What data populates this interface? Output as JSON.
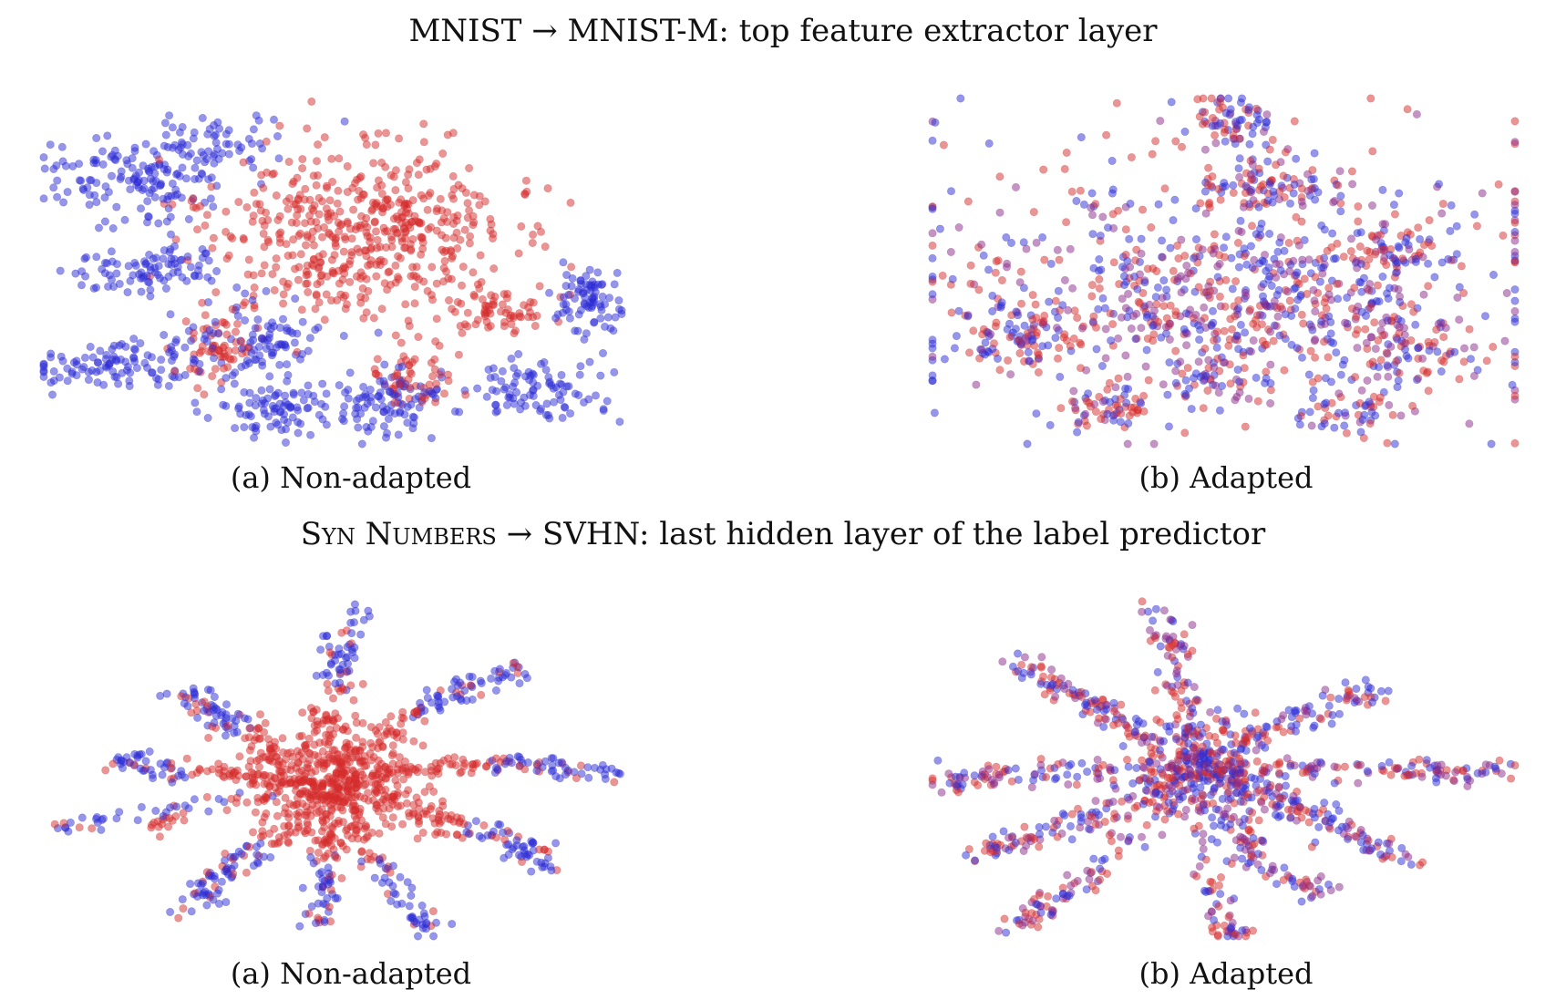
{
  "rows": [
    {
      "title_parts": [
        {
          "text": "MNIST → MNIST-M: top feature extractor layer",
          "smallcaps": false
        }
      ]
    },
    {
      "title_parts": [
        {
          "text": "Syn Numbers",
          "smallcaps": true
        },
        {
          "text": " → SVHN: last hidden layer of the label predictor",
          "smallcaps": false
        }
      ]
    }
  ],
  "colors": {
    "source": "#2b2bd6",
    "target": "#d62b2b"
  },
  "chart_data": [
    {
      "type": "scatter",
      "caption": "(a) Non-adapted",
      "seed": 11,
      "clusters": [
        {
          "domain": "target",
          "x": 0.55,
          "y": 0.4,
          "sx": 0.13,
          "sy": 0.13,
          "n": 520
        },
        {
          "domain": "source",
          "x": 0.16,
          "y": 0.24,
          "sx": 0.07,
          "sy": 0.06,
          "n": 140
        },
        {
          "domain": "source",
          "x": 0.29,
          "y": 0.13,
          "sx": 0.05,
          "sy": 0.04,
          "n": 60
        },
        {
          "domain": "source",
          "x": 0.18,
          "y": 0.5,
          "sx": 0.06,
          "sy": 0.035,
          "n": 90
        },
        {
          "domain": "source",
          "x": 0.14,
          "y": 0.77,
          "sx": 0.09,
          "sy": 0.035,
          "n": 110
        },
        {
          "domain": "source",
          "x": 0.38,
          "y": 0.7,
          "sx": 0.06,
          "sy": 0.06,
          "n": 90
        },
        {
          "domain": "source",
          "x": 0.4,
          "y": 0.9,
          "sx": 0.06,
          "sy": 0.035,
          "n": 80
        },
        {
          "domain": "source",
          "x": 0.6,
          "y": 0.87,
          "sx": 0.05,
          "sy": 0.06,
          "n": 100
        },
        {
          "domain": "source",
          "x": 0.86,
          "y": 0.84,
          "sx": 0.05,
          "sy": 0.045,
          "n": 90
        },
        {
          "domain": "source",
          "x": 0.94,
          "y": 0.58,
          "sx": 0.03,
          "sy": 0.05,
          "n": 80
        },
        {
          "domain": "target",
          "x": 0.3,
          "y": 0.72,
          "sx": 0.03,
          "sy": 0.05,
          "n": 60
        },
        {
          "domain": "target",
          "x": 0.8,
          "y": 0.62,
          "sx": 0.04,
          "sy": 0.04,
          "n": 60
        },
        {
          "domain": "target",
          "x": 0.64,
          "y": 0.8,
          "sx": 0.04,
          "sy": 0.05,
          "n": 50
        }
      ]
    },
    {
      "type": "scatter",
      "caption": "(b) Adapted",
      "seed": 23,
      "clusters": [
        {
          "domain": "mixed",
          "x": 0.5,
          "y": 0.58,
          "sx": 0.17,
          "sy": 0.1,
          "n": 340
        },
        {
          "domain": "mixed",
          "x": 0.5,
          "y": 0.5,
          "sx": 0.32,
          "sy": 0.22,
          "n": 420
        },
        {
          "domain": "mixed",
          "x": 0.51,
          "y": 0.07,
          "sx": 0.04,
          "sy": 0.04,
          "n": 70
        },
        {
          "domain": "mixed",
          "x": 0.57,
          "y": 0.25,
          "sx": 0.07,
          "sy": 0.04,
          "n": 90
        },
        {
          "domain": "mixed",
          "x": 0.15,
          "y": 0.69,
          "sx": 0.05,
          "sy": 0.05,
          "n": 80
        },
        {
          "domain": "mixed",
          "x": 0.81,
          "y": 0.72,
          "sx": 0.05,
          "sy": 0.05,
          "n": 80
        },
        {
          "domain": "mixed",
          "x": 0.3,
          "y": 0.89,
          "sx": 0.05,
          "sy": 0.03,
          "n": 60
        },
        {
          "domain": "mixed",
          "x": 0.72,
          "y": 0.9,
          "sx": 0.05,
          "sy": 0.03,
          "n": 50
        },
        {
          "domain": "mixed",
          "x": 0.5,
          "y": 0.8,
          "sx": 0.05,
          "sy": 0.05,
          "n": 60
        },
        {
          "domain": "mixed",
          "x": 0.8,
          "y": 0.45,
          "sx": 0.05,
          "sy": 0.04,
          "n": 60
        }
      ]
    },
    {
      "type": "scatter",
      "caption": "(a) Non-adapted",
      "seed": 37,
      "center": [
        0.5,
        0.55
      ],
      "core": {
        "n": 260,
        "sx": 0.07,
        "sy": 0.09
      },
      "arms": [
        {
          "end": [
            0.54,
            0.03
          ],
          "via": [
            0.49,
            0.28
          ],
          "n": 110,
          "spread": 0.018,
          "tip_domain": "source",
          "tip_frac": 0.45
        },
        {
          "end": [
            0.84,
            0.21
          ],
          "via": [
            0.62,
            0.29
          ],
          "n": 110,
          "spread": 0.016,
          "tip_domain": "source",
          "tip_frac": 0.5
        },
        {
          "end": [
            0.99,
            0.52
          ],
          "via": [
            0.72,
            0.44
          ],
          "n": 130,
          "spread": 0.016,
          "tip_domain": "source",
          "tip_frac": 0.4
        },
        {
          "end": [
            0.88,
            0.78
          ],
          "via": [
            0.7,
            0.64
          ],
          "n": 130,
          "spread": 0.02,
          "tip_domain": "source",
          "tip_frac": 0.35
        },
        {
          "end": [
            0.66,
            0.98
          ],
          "via": [
            0.58,
            0.8
          ],
          "n": 90,
          "spread": 0.018,
          "tip_domain": "source",
          "tip_frac": 0.5
        },
        {
          "end": [
            0.48,
            0.97
          ],
          "via": [
            0.49,
            0.8
          ],
          "n": 90,
          "spread": 0.015,
          "tip_domain": "source",
          "tip_frac": 0.5
        },
        {
          "end": [
            0.24,
            0.92
          ],
          "via": [
            0.36,
            0.75
          ],
          "n": 110,
          "spread": 0.02,
          "tip_domain": "source",
          "tip_frac": 0.55
        },
        {
          "end": [
            0.12,
            0.47
          ],
          "via": [
            0.32,
            0.53
          ],
          "n": 120,
          "spread": 0.016,
          "tip_domain": "source",
          "tip_frac": 0.3
        },
        {
          "end": [
            0.24,
            0.26
          ],
          "via": [
            0.36,
            0.42
          ],
          "n": 110,
          "spread": 0.02,
          "tip_domain": "source",
          "tip_frac": 0.4
        },
        {
          "end": [
            0.02,
            0.68
          ],
          "via": [
            0.08,
            0.66
          ],
          "n": 40,
          "spread": 0.014,
          "tip_domain": "source",
          "tip_frac": 0.9
        },
        {
          "end": [
            0.2,
            0.68
          ],
          "via": [
            0.17,
            0.67
          ],
          "n": 20,
          "spread": 0.012,
          "tip_domain": "target",
          "tip_frac": 0.5
        }
      ]
    },
    {
      "type": "scatter",
      "caption": "(b) Adapted",
      "seed": 53,
      "center": [
        0.46,
        0.5
      ],
      "core": {
        "n": 200,
        "sx": 0.07,
        "sy": 0.08
      },
      "arms": [
        {
          "end": [
            0.4,
            0.02
          ],
          "via": [
            0.42,
            0.25
          ],
          "n": 90,
          "spread": 0.018,
          "tip_domain": "mixed",
          "tip_frac": 0.5
        },
        {
          "end": [
            0.14,
            0.19
          ],
          "via": [
            0.3,
            0.34
          ],
          "n": 120,
          "spread": 0.02,
          "tip_domain": "mixed",
          "tip_frac": 0.5
        },
        {
          "end": [
            0.76,
            0.26
          ],
          "via": [
            0.6,
            0.35
          ],
          "n": 100,
          "spread": 0.02,
          "tip_domain": "mixed",
          "tip_frac": 0.5
        },
        {
          "end": [
            0.99,
            0.51
          ],
          "via": [
            0.86,
            0.51
          ],
          "n": 110,
          "spread": 0.015,
          "tip_domain": "mixed",
          "tip_frac": 0.5
        },
        {
          "end": [
            0.8,
            0.77
          ],
          "via": [
            0.62,
            0.61
          ],
          "n": 140,
          "spread": 0.022,
          "tip_domain": "mixed",
          "tip_frac": 0.5
        },
        {
          "end": [
            0.66,
            0.88
          ],
          "via": [
            0.52,
            0.76
          ],
          "n": 100,
          "spread": 0.02,
          "tip_domain": "mixed",
          "tip_frac": 0.5
        },
        {
          "end": [
            0.52,
            1.0
          ],
          "via": [
            0.47,
            0.93
          ],
          "n": 60,
          "spread": 0.018,
          "tip_domain": "mixed",
          "tip_frac": 0.5
        },
        {
          "end": [
            0.14,
            0.97
          ],
          "via": [
            0.26,
            0.86
          ],
          "n": 100,
          "spread": 0.02,
          "tip_domain": "mixed",
          "tip_frac": 0.5
        },
        {
          "end": [
            0.08,
            0.75
          ],
          "via": [
            0.22,
            0.69
          ],
          "n": 110,
          "spread": 0.018,
          "tip_domain": "mixed",
          "tip_frac": 0.5
        },
        {
          "end": [
            0.0,
            0.54
          ],
          "via": [
            0.12,
            0.51
          ],
          "n": 90,
          "spread": 0.018,
          "tip_domain": "mixed",
          "tip_frac": 0.5
        }
      ]
    }
  ]
}
